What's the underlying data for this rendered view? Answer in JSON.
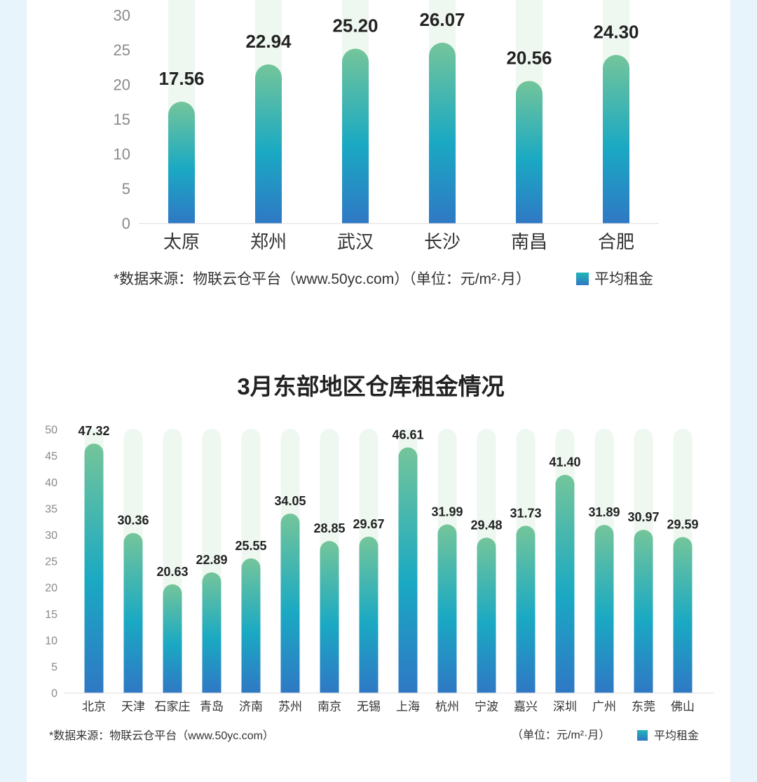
{
  "chart_data": [
    {
      "type": "bar",
      "title": "",
      "categories": [
        "太原",
        "郑州",
        "武汉",
        "长沙",
        "南昌",
        "合肥"
      ],
      "series": [
        {
          "name": "平均租金",
          "values": [
            17.56,
            22.94,
            25.2,
            26.07,
            20.56,
            24.3
          ]
        }
      ],
      "value_labels": [
        "17.56",
        "22.94",
        "25.20",
        "26.07",
        "20.56",
        "24.30"
      ],
      "yticks": [
        "0",
        "5",
        "10",
        "15",
        "20",
        "25",
        "30"
      ],
      "ylim": [
        0,
        30
      ],
      "source": "*数据来源：物联云仓平台（www.50yc.com）（单位：元/m²·月）",
      "legend": "平均租金",
      "grid": false
    },
    {
      "type": "bar",
      "title": "3月东部地区仓库租金情况",
      "categories": [
        "北京",
        "天津",
        "石家庄",
        "青岛",
        "济南",
        "苏州",
        "南京",
        "无锡",
        "上海",
        "杭州",
        "宁波",
        "嘉兴",
        "深圳",
        "广州",
        "东莞",
        "佛山"
      ],
      "series": [
        {
          "name": "平均租金",
          "values": [
            47.32,
            30.36,
            20.63,
            22.89,
            25.55,
            34.05,
            28.85,
            29.67,
            46.61,
            31.99,
            29.48,
            31.73,
            41.4,
            31.89,
            30.97,
            29.59
          ]
        }
      ],
      "value_labels": [
        "47.32",
        "30.36",
        "20.63",
        "22.89",
        "25.55",
        "34.05",
        "28.85",
        "29.67",
        "46.61",
        "31.99",
        "29.48",
        "31.73",
        "41.40",
        "31.89",
        "30.97",
        "29.59"
      ],
      "yticks": [
        "0",
        "5",
        "10",
        "15",
        "20",
        "25",
        "30",
        "35",
        "40",
        "45",
        "50"
      ],
      "ylim": [
        0,
        50
      ],
      "source": "*数据来源：物联云仓平台（www.50yc.com）",
      "unit": "（单位：元/m²·月）",
      "legend": "平均租金",
      "grid": false
    }
  ],
  "colors": {
    "bar_top": "#74c59a",
    "bar_mid": "#1aa9c3",
    "bar_bottom": "#2f78c4",
    "track": "#eef7f0",
    "axis": "#dddddd"
  }
}
